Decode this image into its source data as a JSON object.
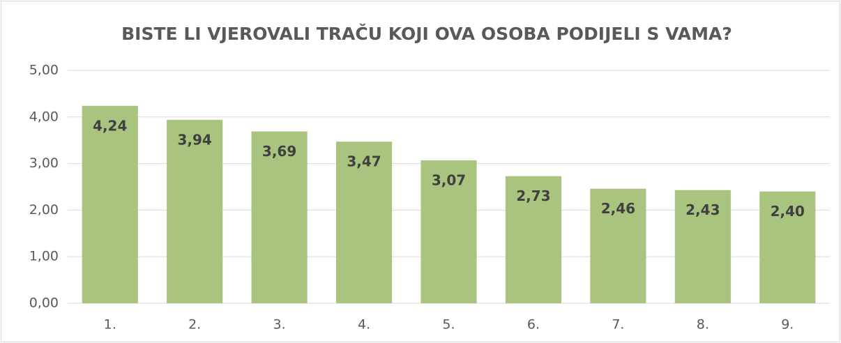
{
  "chart_data": {
    "type": "bar",
    "title": "BISTE LI VJEROVALI TRAČU KOJI OVA OSOBA PODIJELI S VAMA?",
    "categories": [
      "1.",
      "2.",
      "3.",
      "4.",
      "5.",
      "6.",
      "7.",
      "8.",
      "9."
    ],
    "values": [
      4.24,
      3.94,
      3.69,
      3.47,
      3.07,
      2.73,
      2.46,
      2.43,
      2.4
    ],
    "value_labels": [
      "4,24",
      "3,94",
      "3,69",
      "3,47",
      "3,07",
      "2,73",
      "2,46",
      "2,43",
      "2,40"
    ],
    "color": "#a9c47f",
    "ylim": [
      0,
      5
    ],
    "yticks": [
      {
        "value": 0,
        "label": "0,00"
      },
      {
        "value": 1,
        "label": "1,00"
      },
      {
        "value": 2,
        "label": "2,00"
      },
      {
        "value": 3,
        "label": "3,00"
      },
      {
        "value": 4,
        "label": "4,00"
      },
      {
        "value": 5,
        "label": "5,00"
      }
    ],
    "grid": true
  }
}
